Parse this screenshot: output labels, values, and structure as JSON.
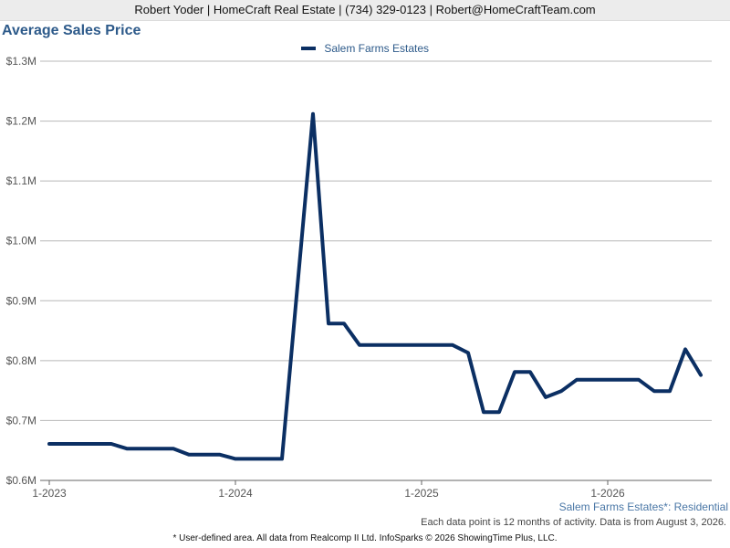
{
  "header": {
    "contact": "Robert Yoder | HomeCraft Real Estate | (734) 329-0123 | Robert@HomeCraftTeam.com"
  },
  "chart_data": {
    "type": "line",
    "title": "Average Sales Price",
    "xlabel": "",
    "ylabel": "",
    "ylim": [
      600000,
      1300000
    ],
    "yticks": [
      {
        "value": 600000,
        "label": "$0.6M"
      },
      {
        "value": 700000,
        "label": "$0.7M"
      },
      {
        "value": 800000,
        "label": "$0.8M"
      },
      {
        "value": 900000,
        "label": "$0.9M"
      },
      {
        "value": 1000000,
        "label": "$1.0M"
      },
      {
        "value": 1100000,
        "label": "$1.1M"
      },
      {
        "value": 1200000,
        "label": "$1.2M"
      },
      {
        "value": 1300000,
        "label": "$1.3M"
      }
    ],
    "xticks": [
      "1-2023",
      "1-2024",
      "1-2025",
      "1-2026"
    ],
    "grid": true,
    "legend_position": "top-center",
    "series": [
      {
        "name": "Salem Farms Estates",
        "color": "#0b2f63",
        "x": [
          "2023-01",
          "2023-02",
          "2023-03",
          "2023-04",
          "2023-05",
          "2023-06",
          "2023-07",
          "2023-08",
          "2023-09",
          "2023-10",
          "2023-11",
          "2023-12",
          "2024-01",
          "2024-02",
          "2024-03",
          "2024-04",
          "2024-05",
          "2024-06",
          "2024-07",
          "2024-08",
          "2024-09",
          "2024-10",
          "2024-11",
          "2024-12",
          "2025-01",
          "2025-02",
          "2025-03",
          "2025-04",
          "2025-05",
          "2025-06",
          "2025-07",
          "2025-08",
          "2025-09",
          "2025-10",
          "2025-11",
          "2025-12",
          "2026-01",
          "2026-02",
          "2026-03",
          "2026-04",
          "2026-05",
          "2026-06",
          "2026-07"
        ],
        "values": [
          661000,
          661000,
          661000,
          661000,
          661000,
          653000,
          653000,
          653000,
          653000,
          643000,
          643000,
          643000,
          636000,
          636000,
          636000,
          636000,
          925000,
          1212000,
          862000,
          862000,
          826000,
          826000,
          826000,
          826000,
          826000,
          826000,
          826000,
          813000,
          714000,
          714000,
          781000,
          781000,
          739000,
          749000,
          768000,
          768000,
          768000,
          768000,
          768000,
          749000,
          749000,
          819000,
          776000
        ]
      }
    ]
  },
  "footer": {
    "area_label": "Salem Farms Estates*: Residential",
    "note": "Each data point is 12 months of activity. Data is from August 3, 2026.",
    "disclaimer": "* User-defined area. All data from Realcomp II Ltd. InfoSparks © 2026 ShowingTime Plus, LLC."
  }
}
